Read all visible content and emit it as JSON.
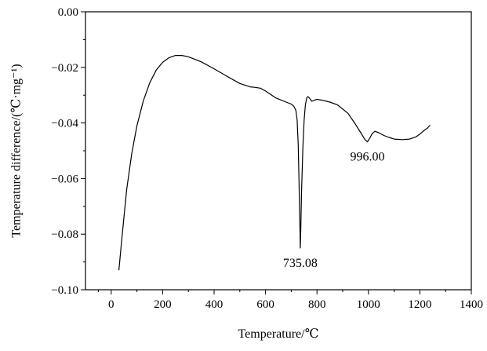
{
  "chart_data": {
    "type": "line",
    "title": "",
    "xlabel": "Temperature/℃",
    "ylabel": "Temperature difference/(℃·mg⁻¹)",
    "xlim": [
      -100,
      1400
    ],
    "ylim": [
      -0.1,
      0.0
    ],
    "x_ticks": [
      {
        "value": 0,
        "label": "0"
      },
      {
        "value": 200,
        "label": "200"
      },
      {
        "value": 400,
        "label": "400"
      },
      {
        "value": 600,
        "label": "600"
      },
      {
        "value": 800,
        "label": "800"
      },
      {
        "value": 1000,
        "label": "1000"
      },
      {
        "value": 1200,
        "label": "1200"
      },
      {
        "value": 1400,
        "label": "1400"
      }
    ],
    "y_ticks": [
      {
        "value": 0.0,
        "label": "0.00"
      },
      {
        "value": -0.02,
        "label": "−0.02"
      },
      {
        "value": -0.04,
        "label": "−0.04"
      },
      {
        "value": -0.06,
        "label": "−0.06"
      },
      {
        "value": -0.08,
        "label": "−0.08"
      },
      {
        "value": -0.1,
        "label": "−0.10"
      }
    ],
    "grid": false,
    "series": [
      {
        "x": [
          30,
          40,
          60,
          80,
          100,
          125,
          150,
          175,
          200,
          225,
          250,
          275,
          300,
          350,
          400,
          450,
          500,
          540,
          560,
          580,
          600,
          640,
          680,
          700,
          710,
          718,
          723,
          727,
          731,
          734,
          735.08,
          737,
          740,
          745,
          750,
          755,
          760,
          765,
          770,
          780,
          790,
          800,
          820,
          850,
          880,
          920,
          950,
          970,
          985,
          996,
          1005,
          1015,
          1025,
          1040,
          1060,
          1080,
          1100,
          1130,
          1160,
          1185,
          1200,
          1215,
          1230,
          1240
        ],
        "y": [
          -0.093,
          -0.083,
          -0.064,
          -0.051,
          -0.041,
          -0.032,
          -0.0255,
          -0.021,
          -0.0182,
          -0.0165,
          -0.0157,
          -0.0157,
          -0.0162,
          -0.018,
          -0.0205,
          -0.0232,
          -0.0258,
          -0.027,
          -0.0272,
          -0.0275,
          -0.0285,
          -0.031,
          -0.0325,
          -0.0332,
          -0.034,
          -0.0355,
          -0.039,
          -0.048,
          -0.065,
          -0.08,
          -0.085,
          -0.079,
          -0.065,
          -0.049,
          -0.039,
          -0.0335,
          -0.031,
          -0.0305,
          -0.031,
          -0.0322,
          -0.0318,
          -0.0315,
          -0.0318,
          -0.0325,
          -0.0335,
          -0.0365,
          -0.0405,
          -0.0435,
          -0.0458,
          -0.0468,
          -0.0455,
          -0.0438,
          -0.043,
          -0.0435,
          -0.0445,
          -0.0452,
          -0.0458,
          -0.046,
          -0.0458,
          -0.045,
          -0.044,
          -0.0428,
          -0.0418,
          -0.0408
        ]
      }
    ],
    "annotations": [
      {
        "text": "735.08",
        "x": 735.08,
        "y": -0.085
      },
      {
        "text": "996.00",
        "x": 996,
        "y": -0.0468
      }
    ]
  }
}
